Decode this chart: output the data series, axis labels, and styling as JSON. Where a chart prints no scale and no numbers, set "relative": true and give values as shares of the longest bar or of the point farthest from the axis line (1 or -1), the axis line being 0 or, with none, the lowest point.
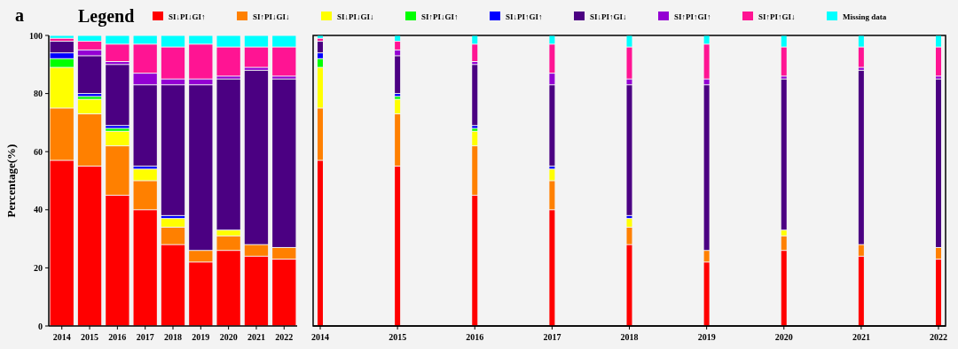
{
  "chart_data": [
    {
      "type": "bar",
      "title": "a",
      "legend_title": "Legend",
      "ylabel": "Percentage(%)",
      "stacked": true,
      "legend": "top",
      "grid": false,
      "categories": [
        "2014",
        "2015",
        "2016",
        "2017",
        "2018",
        "2019",
        "2020",
        "2021",
        "2022"
      ],
      "ylim": [
        0,
        100
      ],
      "yticks": [
        0,
        20,
        40,
        60,
        80,
        100
      ],
      "series": [
        {
          "name": "SI↓PI↓GI↑",
          "color": "#ff0000",
          "values": [
            57,
            55,
            45,
            40,
            28,
            22,
            26,
            24,
            23
          ]
        },
        {
          "name": "SI↑PI↓GI↓",
          "color": "#ff8000",
          "values": [
            18,
            18,
            17,
            10,
            6,
            4,
            5,
            4,
            4
          ]
        },
        {
          "name": "SI↓PI↓GI↓",
          "color": "#ffff00",
          "values": [
            14,
            5,
            5,
            4,
            3,
            0,
            2,
            0,
            0
          ]
        },
        {
          "name": "SI↑PI↓GI↑",
          "color": "#00ff00",
          "values": [
            3,
            1,
            1,
            0,
            0,
            0,
            0,
            0,
            0
          ]
        },
        {
          "name": "SI↓PI↑GI↑",
          "color": "#0000ff",
          "values": [
            2,
            1,
            1,
            1,
            1,
            0,
            0,
            0,
            0
          ]
        },
        {
          "name": "SI↓PI↑GI↓",
          "color": "#4b0082",
          "values": [
            4,
            13,
            21,
            28,
            45,
            57,
            52,
            60,
            58
          ]
        },
        {
          "name": "SI↑PI↑GI↑",
          "color": "#9400d3",
          "values": [
            0,
            2,
            1,
            4,
            2,
            2,
            1,
            1,
            1
          ]
        },
        {
          "name": "SI↑PI↑GI↓",
          "color": "#ff1493",
          "values": [
            1,
            3,
            6,
            10,
            11,
            12,
            10,
            7,
            10
          ]
        },
        {
          "name": "Missing data",
          "color": "#00ffff",
          "values": [
            1,
            2,
            3,
            3,
            4,
            3,
            4,
            4,
            4
          ]
        }
      ]
    },
    {
      "type": "bar",
      "stacked": true,
      "relative": true,
      "categories": [
        "2014",
        "2015",
        "2016",
        "2017",
        "2018",
        "2019",
        "2020",
        "2021",
        "2022"
      ],
      "series": [
        {
          "color": "#ff0000",
          "values": [
            0.57,
            0.55,
            0.45,
            0.4,
            0.28,
            0.22,
            0.26,
            0.24,
            0.23
          ]
        },
        {
          "color": "#ff8000",
          "values": [
            0.18,
            0.18,
            0.17,
            0.1,
            0.06,
            0.04,
            0.05,
            0.04,
            0.04
          ]
        },
        {
          "color": "#ffff00",
          "values": [
            0.14,
            0.05,
            0.05,
            0.04,
            0.03,
            0,
            0.02,
            0,
            0
          ]
        },
        {
          "color": "#00ff00",
          "values": [
            0.03,
            0.01,
            0.01,
            0,
            0,
            0,
            0,
            0,
            0
          ]
        },
        {
          "color": "#0000ff",
          "values": [
            0.02,
            0.01,
            0.01,
            0.01,
            0.01,
            0,
            0,
            0,
            0
          ]
        },
        {
          "color": "#4b0082",
          "values": [
            0.04,
            0.13,
            0.21,
            0.28,
            0.45,
            0.57,
            0.52,
            0.6,
            0.58
          ]
        },
        {
          "color": "#9400d3",
          "values": [
            0,
            0.02,
            0.01,
            0.04,
            0.02,
            0.02,
            0.01,
            0.01,
            0.01
          ]
        },
        {
          "color": "#ff1493",
          "values": [
            0.01,
            0.03,
            0.06,
            0.1,
            0.11,
            0.12,
            0.1,
            0.07,
            0.1
          ]
        },
        {
          "color": "#00ffff",
          "values": [
            0.01,
            0.02,
            0.03,
            0.03,
            0.04,
            0.03,
            0.04,
            0.04,
            0.04
          ]
        }
      ]
    }
  ]
}
